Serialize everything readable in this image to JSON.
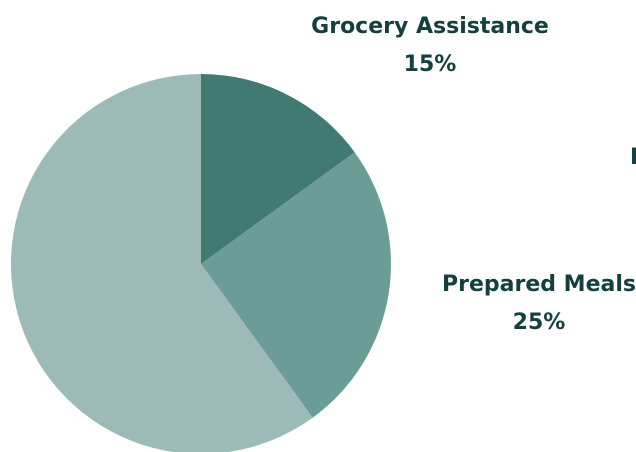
{
  "chart_data": {
    "type": "pie",
    "title": "",
    "slices": [
      {
        "label": "Grocery Assistance",
        "value": 15,
        "value_label": "15%",
        "color": "#407a70"
      },
      {
        "label": "Prepared Meals",
        "value": 25,
        "value_label": "25%",
        "color": "#6b9d96"
      },
      {
        "label": "",
        "value": 60,
        "value_label": "",
        "color": "#9cbbb8"
      }
    ],
    "partial_label_fragment": "P",
    "label_color": "#143f3f",
    "start_angle_deg": 0,
    "direction": "clockwise",
    "legend": "none"
  }
}
